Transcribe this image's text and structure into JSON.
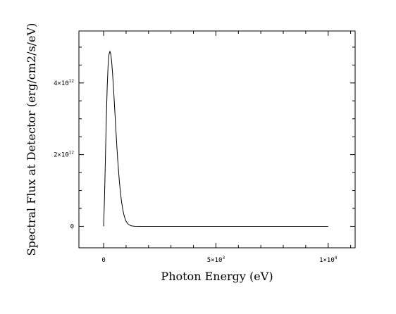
{
  "chart_data": {
    "type": "line",
    "xlabel": "Photon Energy (eV)",
    "ylabel": "Spectral Flux at Detector (erg/cm2/s/eV)",
    "xlim": [
      -1100,
      11200
    ],
    "ylim": [
      -600000000000.0,
      5450000000000.0
    ],
    "x_ticks": [
      {
        "value": 0,
        "label": "0",
        "exp": ""
      },
      {
        "value": 5000,
        "label": "5×10",
        "exp": "3"
      },
      {
        "value": 10000,
        "label": "1×10",
        "exp": "4"
      }
    ],
    "y_ticks": [
      {
        "value": 0,
        "label": "0",
        "exp": ""
      },
      {
        "value": 2000000000000.0,
        "label": "2×10",
        "exp": "12"
      },
      {
        "value": 4000000000000.0,
        "label": "4×10",
        "exp": "12"
      }
    ],
    "grid": false,
    "series": [
      {
        "color": "#000000",
        "x": [
          0,
          40,
          80,
          120,
          160,
          200,
          240,
          280,
          320,
          360,
          400,
          450,
          500,
          550,
          600,
          650,
          700,
          750,
          800,
          850,
          900,
          950,
          1000,
          1100,
          1200,
          1300,
          1400,
          1600,
          2000,
          3000,
          4000,
          5000,
          6000,
          7000,
          8000,
          9000,
          10000
        ],
        "y": [
          0,
          800000000000.0,
          1900000000000.0,
          3000000000000.0,
          3900000000000.0,
          4500000000000.0,
          4800000000000.0,
          4880000000000.0,
          4800000000000.0,
          4580000000000.0,
          4250000000000.0,
          3750000000000.0,
          3200000000000.0,
          2650000000000.0,
          2120000000000.0,
          1660000000000.0,
          1260000000000.0,
          940000000000.0,
          680000000000.0,
          480000000000.0,
          330000000000.0,
          220000000000.0,
          140000000000.0,
          55000000000.0,
          20000000000.0,
          7000000000.0,
          2000000000.0,
          0,
          0,
          0,
          0,
          0,
          0,
          0,
          0,
          0,
          0
        ]
      }
    ]
  }
}
